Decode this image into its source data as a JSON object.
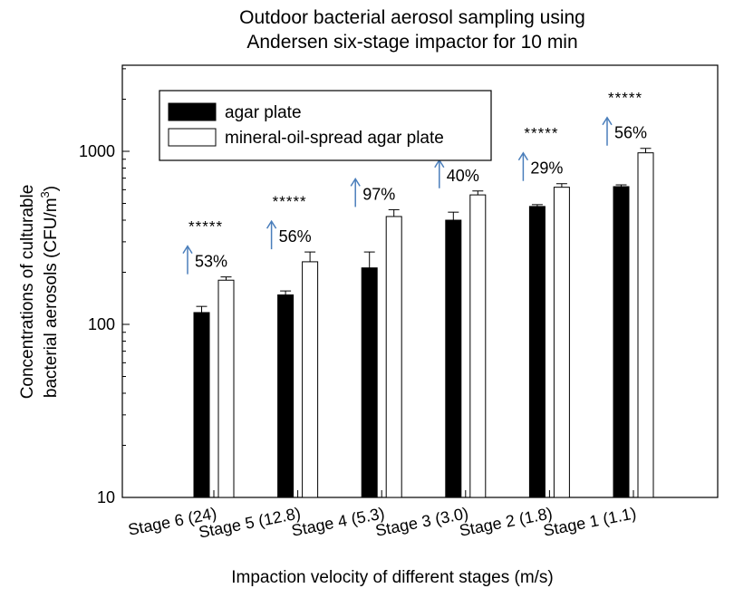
{
  "chart_data": {
    "type": "bar",
    "title_lines": [
      "Outdoor bacterial aerosol sampling using",
      "Andersen six-stage impactor for 10 min"
    ],
    "xlabel": "Impaction velocity of different stages (m/s)",
    "ylabel_lines": [
      "Concentrations of culturable",
      "bacterial aerosols (CFU/m",
      "3",
      ")"
    ],
    "yscale": "log",
    "ylim": [
      10,
      3000
    ],
    "yticks": [
      {
        "value": 10,
        "label": "10"
      },
      {
        "value": 100,
        "label": "100"
      },
      {
        "value": 1000,
        "label": "1000"
      }
    ],
    "categories": [
      "Stage 6 (24)",
      "Stage 5 (12.8)",
      "Stage 4 (5.3)",
      "Stage 3 (3.0)",
      "Stage 2 (1.8)",
      "Stage 1 (1.1)"
    ],
    "series": [
      {
        "name": "agar plate",
        "color": "#000000",
        "values": [
          117,
          148,
          212,
          400,
          480,
          625
        ],
        "errors": [
          10,
          8,
          50,
          45,
          12,
          15
        ]
      },
      {
        "name": "mineral-oil-spread agar plate",
        "color": "#ffffff",
        "values": [
          180,
          230,
          420,
          560,
          620,
          980
        ],
        "errors": [
          8,
          32,
          40,
          30,
          30,
          60
        ]
      }
    ],
    "annotations": [
      {
        "percent": "53%",
        "stars": "*****"
      },
      {
        "percent": "56%",
        "stars": "*****"
      },
      {
        "percent": "97%",
        "stars": "*****"
      },
      {
        "percent": "40%",
        "stars": "*****"
      },
      {
        "percent": "29%",
        "stars": "*****"
      },
      {
        "percent": "56%",
        "stars": "*****"
      }
    ],
    "arrow_color": "#4a7ebb",
    "legend_position": "top-left"
  }
}
